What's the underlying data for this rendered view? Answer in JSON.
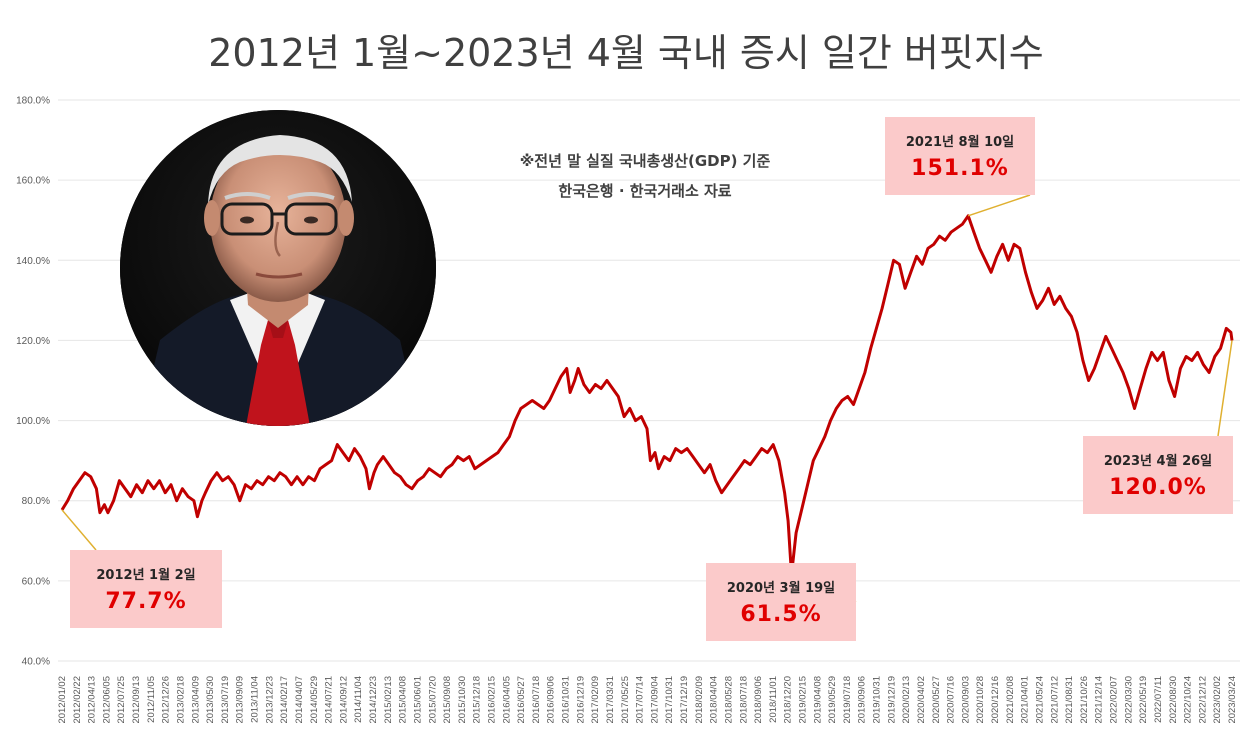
{
  "title": "2012년 1월~2023년 4월 국내 증시 일간 버핏지수",
  "note": {
    "line1": "※전년 말 실질 국내총생산(GDP) 기준",
    "line2": "한국은행 · 한국거래소 자료"
  },
  "callouts": [
    {
      "date": "2012년 1월 2일",
      "value": "77.7%"
    },
    {
      "date": "2020년 3월 19일",
      "value": "61.5%"
    },
    {
      "date": "2021년 8월 10일",
      "value": "151.1%"
    },
    {
      "date": "2023년 4월 26일",
      "value": "120.0%"
    }
  ],
  "colors": {
    "line": "#c00000",
    "callout_bg": "#fbcaca",
    "callout_value": "#e00000",
    "leader": "#e0b030"
  },
  "chart_data": {
    "type": "line",
    "title": "2012년 1월~2023년 4월 국내 증시 일간 버핏지수",
    "xlabel": "",
    "ylabel": "",
    "ylim": [
      40,
      180
    ],
    "yticks": [
      "40.0%",
      "60.0%",
      "80.0%",
      "100.0%",
      "120.0%",
      "140.0%",
      "160.0%",
      "180.0%"
    ],
    "xticks": [
      "2012/01/02",
      "2012/02/22",
      "2012/04/13",
      "2012/06/05",
      "2012/07/25",
      "2012/09/13",
      "2012/11/05",
      "2012/12/26",
      "2013/02/18",
      "2013/04/09",
      "2013/05/30",
      "2013/07/19",
      "2013/09/09",
      "2013/11/04",
      "2013/12/23",
      "2014/02/17",
      "2014/04/07",
      "2014/05/29",
      "2014/07/21",
      "2014/09/12",
      "2014/11/04",
      "2014/12/23",
      "2015/02/13",
      "2015/04/08",
      "2015/06/01",
      "2015/07/20",
      "2015/09/08",
      "2015/10/30",
      "2015/12/18",
      "2016/02/15",
      "2016/04/05",
      "2016/05/27",
      "2016/07/18",
      "2016/09/06",
      "2016/10/31",
      "2016/12/19",
      "2017/02/09",
      "2017/03/31",
      "2017/05/25",
      "2017/07/14",
      "2017/09/04",
      "2017/10/31",
      "2017/12/19",
      "2018/02/09",
      "2018/04/04",
      "2018/05/28",
      "2018/07/18",
      "2018/09/06",
      "2018/11/01",
      "2018/12/20",
      "2019/02/15",
      "2019/04/08",
      "2019/05/29",
      "2019/07/18",
      "2019/09/06",
      "2019/10/31",
      "2019/12/19",
      "2020/02/13",
      "2020/04/02",
      "2020/05/27",
      "2020/07/16",
      "2020/09/03",
      "2020/10/28",
      "2020/12/16",
      "2021/02/08",
      "2021/04/01",
      "2021/05/24",
      "2021/07/12",
      "2021/08/31",
      "2021/10/26",
      "2021/12/14",
      "2022/02/07",
      "2022/03/30",
      "2022/05/19",
      "2022/07/11",
      "2022/08/30",
      "2022/10/24",
      "2022/12/12",
      "2023/02/02",
      "2023/03/24"
    ],
    "series": [
      {
        "values": [
          [
            0,
            77.7
          ],
          [
            0.5,
            80
          ],
          [
            1,
            83
          ],
          [
            1.5,
            85
          ],
          [
            2,
            87
          ],
          [
            2.5,
            86
          ],
          [
            3,
            83
          ],
          [
            3.3,
            77
          ],
          [
            3.7,
            79
          ],
          [
            4,
            77
          ],
          [
            4.5,
            80
          ],
          [
            5,
            85
          ],
          [
            5.5,
            83
          ],
          [
            6,
            81
          ],
          [
            6.5,
            84
          ],
          [
            7,
            82
          ],
          [
            7.5,
            85
          ],
          [
            8,
            83
          ],
          [
            8.5,
            85
          ],
          [
            9,
            82
          ],
          [
            9.5,
            84
          ],
          [
            10,
            80
          ],
          [
            10.5,
            83
          ],
          [
            11,
            81
          ],
          [
            11.5,
            80
          ],
          [
            11.8,
            76
          ],
          [
            12.2,
            80
          ],
          [
            12.5,
            82
          ],
          [
            13,
            85
          ],
          [
            13.5,
            87
          ],
          [
            14,
            85
          ],
          [
            14.5,
            86
          ],
          [
            15,
            84
          ],
          [
            15.5,
            80
          ],
          [
            16,
            84
          ],
          [
            16.5,
            83
          ],
          [
            17,
            85
          ],
          [
            17.5,
            84
          ],
          [
            18,
            86
          ],
          [
            18.5,
            85
          ],
          [
            19,
            87
          ],
          [
            19.5,
            86
          ],
          [
            20,
            84
          ],
          [
            20.5,
            86
          ],
          [
            21,
            84
          ],
          [
            21.5,
            86
          ],
          [
            22,
            85
          ],
          [
            22.5,
            88
          ],
          [
            23,
            89
          ],
          [
            23.5,
            90
          ],
          [
            24,
            94
          ],
          [
            24.5,
            92
          ],
          [
            25,
            90
          ],
          [
            25.5,
            93
          ],
          [
            26,
            91
          ],
          [
            26.5,
            88
          ],
          [
            26.8,
            83
          ],
          [
            27.2,
            87
          ],
          [
            27.5,
            89
          ],
          [
            28,
            91
          ],
          [
            28.5,
            89
          ],
          [
            29,
            87
          ],
          [
            29.5,
            86
          ],
          [
            30,
            84
          ],
          [
            30.5,
            83
          ],
          [
            31,
            85
          ],
          [
            31.5,
            86
          ],
          [
            32,
            88
          ],
          [
            32.5,
            87
          ],
          [
            33,
            86
          ],
          [
            33.5,
            88
          ],
          [
            34,
            89
          ],
          [
            34.5,
            91
          ],
          [
            35,
            90
          ],
          [
            35.5,
            91
          ],
          [
            36,
            88
          ],
          [
            36.5,
            89
          ],
          [
            37,
            90
          ],
          [
            37.5,
            91
          ],
          [
            38,
            92
          ],
          [
            38.5,
            94
          ],
          [
            39,
            96
          ],
          [
            39.5,
            100
          ],
          [
            40,
            103
          ],
          [
            40.5,
            104
          ],
          [
            41,
            105
          ],
          [
            41.5,
            104
          ],
          [
            42,
            103
          ],
          [
            42.5,
            105
          ],
          [
            43,
            108
          ],
          [
            43.5,
            111
          ],
          [
            44,
            113
          ],
          [
            44.3,
            107
          ],
          [
            44.7,
            110
          ],
          [
            45,
            113
          ],
          [
            45.5,
            109
          ],
          [
            46,
            107
          ],
          [
            46.5,
            109
          ],
          [
            47,
            108
          ],
          [
            47.5,
            110
          ],
          [
            48,
            108
          ],
          [
            48.5,
            106
          ],
          [
            49,
            101
          ],
          [
            49.5,
            103
          ],
          [
            50,
            100
          ],
          [
            50.5,
            101
          ],
          [
            51,
            98
          ],
          [
            51.3,
            90
          ],
          [
            51.7,
            92
          ],
          [
            52,
            88
          ],
          [
            52.5,
            91
          ],
          [
            53,
            90
          ],
          [
            53.5,
            93
          ],
          [
            54,
            92
          ],
          [
            54.5,
            93
          ],
          [
            55,
            91
          ],
          [
            55.5,
            89
          ],
          [
            56,
            87
          ],
          [
            56.5,
            89
          ],
          [
            57,
            85
          ],
          [
            57.5,
            82
          ],
          [
            58,
            84
          ],
          [
            58.5,
            86
          ],
          [
            59,
            88
          ],
          [
            59.5,
            90
          ],
          [
            60,
            89
          ],
          [
            60.5,
            91
          ],
          [
            61,
            93
          ],
          [
            61.5,
            92
          ],
          [
            62,
            94
          ],
          [
            62.5,
            90
          ],
          [
            63,
            82
          ],
          [
            63.3,
            75
          ],
          [
            63.6,
            61.5
          ],
          [
            64,
            72
          ],
          [
            64.5,
            78
          ],
          [
            65,
            84
          ],
          [
            65.5,
            90
          ],
          [
            66,
            93
          ],
          [
            66.5,
            96
          ],
          [
            67,
            100
          ],
          [
            67.5,
            103
          ],
          [
            68,
            105
          ],
          [
            68.5,
            106
          ],
          [
            69,
            104
          ],
          [
            69.5,
            108
          ],
          [
            70,
            112
          ],
          [
            70.5,
            118
          ],
          [
            71,
            123
          ],
          [
            71.5,
            128
          ],
          [
            72,
            134
          ],
          [
            72.5,
            140
          ],
          [
            73,
            139
          ],
          [
            73.5,
            133
          ],
          [
            74,
            137
          ],
          [
            74.5,
            141
          ],
          [
            75,
            139
          ],
          [
            75.5,
            143
          ],
          [
            76,
            144
          ],
          [
            76.5,
            146
          ],
          [
            77,
            145
          ],
          [
            77.5,
            147
          ],
          [
            78,
            148
          ],
          [
            78.5,
            149
          ],
          [
            79,
            151.1
          ],
          [
            79.5,
            147
          ],
          [
            80,
            143
          ],
          [
            80.5,
            140
          ],
          [
            81,
            137
          ],
          [
            81.5,
            141
          ],
          [
            82,
            144
          ],
          [
            82.5,
            140
          ],
          [
            83,
            144
          ],
          [
            83.5,
            143
          ],
          [
            84,
            137
          ],
          [
            84.5,
            132
          ],
          [
            85,
            128
          ],
          [
            85.5,
            130
          ],
          [
            86,
            133
          ],
          [
            86.5,
            129
          ],
          [
            87,
            131
          ],
          [
            87.5,
            128
          ],
          [
            88,
            126
          ],
          [
            88.5,
            122
          ],
          [
            89,
            115
          ],
          [
            89.5,
            110
          ],
          [
            90,
            113
          ],
          [
            90.5,
            117
          ],
          [
            91,
            121
          ],
          [
            91.5,
            118
          ],
          [
            92,
            115
          ],
          [
            92.5,
            112
          ],
          [
            93,
            108
          ],
          [
            93.5,
            103
          ],
          [
            94,
            108
          ],
          [
            94.5,
            113
          ],
          [
            95,
            117
          ],
          [
            95.5,
            115
          ],
          [
            96,
            117
          ],
          [
            96.5,
            110
          ],
          [
            97,
            106
          ],
          [
            97.5,
            113
          ],
          [
            98,
            116
          ],
          [
            98.5,
            115
          ],
          [
            99,
            117
          ],
          [
            99.5,
            114
          ],
          [
            100,
            112
          ],
          [
            100.5,
            116
          ],
          [
            101,
            118
          ],
          [
            101.5,
            123
          ],
          [
            101.9,
            122
          ],
          [
            102,
            120
          ]
        ]
      }
    ]
  }
}
